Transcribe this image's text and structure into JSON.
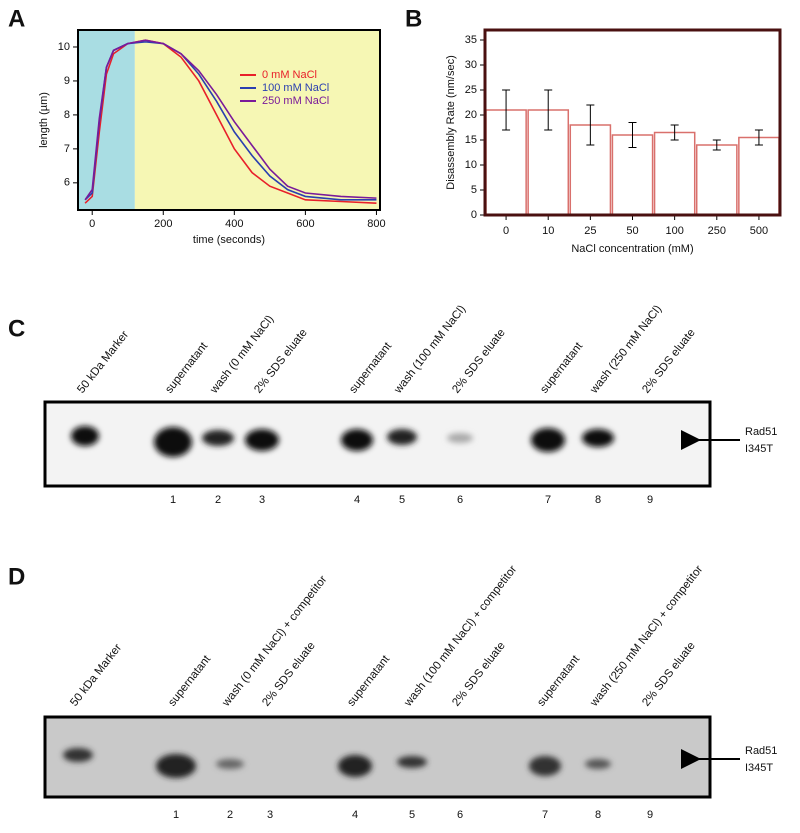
{
  "chart_data": [
    {
      "type": "line",
      "panel": "A",
      "xlabel": "time (seconds)",
      "ylabel": "length (µm)",
      "x": [
        -20,
        0,
        20,
        40,
        60,
        100,
        150,
        200,
        250,
        300,
        350,
        400,
        450,
        500,
        550,
        600,
        700,
        800
      ],
      "series": [
        {
          "name": "0 mM NaCl",
          "color": "#e8202a",
          "values": [
            5.4,
            5.6,
            7.5,
            9.2,
            9.8,
            10.1,
            10.2,
            10.1,
            9.7,
            9.0,
            8.0,
            7.0,
            6.3,
            5.9,
            5.7,
            5.5,
            5.45,
            5.4
          ]
        },
        {
          "name": "100 mM NaCl",
          "color": "#2a3fb0",
          "values": [
            5.5,
            5.7,
            7.8,
            9.4,
            9.9,
            10.1,
            10.15,
            10.1,
            9.8,
            9.2,
            8.4,
            7.5,
            6.8,
            6.2,
            5.8,
            5.6,
            5.5,
            5.5
          ]
        },
        {
          "name": "250 mM NaCl",
          "color": "#7a1a9a",
          "values": [
            5.5,
            5.8,
            7.9,
            9.4,
            9.9,
            10.1,
            10.2,
            10.1,
            9.8,
            9.3,
            8.6,
            7.8,
            7.1,
            6.4,
            5.9,
            5.7,
            5.6,
            5.55
          ]
        }
      ],
      "shaded_spans": [
        {
          "from": -40,
          "to": 120,
          "color": "#a9dde3"
        },
        {
          "from": 120,
          "to": 810,
          "color": "#f6f7b4"
        }
      ],
      "xlim": [
        -40,
        810
      ],
      "xticks": [
        0,
        200,
        400,
        600,
        800
      ],
      "ylim": [
        5.2,
        10.5
      ],
      "yticks": [
        6,
        7,
        8,
        9,
        10
      ],
      "legend": "upper right"
    },
    {
      "type": "bar",
      "panel": "B",
      "xlabel": "NaCl concentration (mM)",
      "ylabel": "Disassembly Rate (nm/sec)",
      "categories": [
        "0",
        "10",
        "25",
        "50",
        "100",
        "250",
        "500"
      ],
      "values": [
        21,
        21,
        18,
        16,
        16.5,
        14,
        15.5
      ],
      "errors": [
        4,
        4,
        4,
        2.5,
        1.5,
        1,
        1.5
      ],
      "color": "#d9706c",
      "frame_color": "#4a1010",
      "ylim": [
        0,
        37
      ],
      "yticks": [
        0,
        5,
        10,
        15,
        20,
        25,
        30,
        35
      ]
    }
  ],
  "figure": {
    "panel_labels": [
      "A",
      "B",
      "C",
      "D"
    ],
    "gels": [
      {
        "lane_labels": [
          "50 kDa Marker",
          "supernatant",
          "wash (0 mM NaCl)",
          "2% SDS eluate",
          "supernatant",
          "wash (100 mM NaCl)",
          "2% SDS eluate",
          "supernatant",
          "wash (250 mM NaCl)",
          "2% SDS eluate"
        ],
        "lane_numbers": [
          "1",
          "2",
          "3",
          "4",
          "5",
          "6",
          "7",
          "8",
          "9"
        ],
        "protein_label": [
          "Rad51",
          "I345T"
        ]
      },
      {
        "lane_labels": [
          "50 kDa Marker",
          "supernatant",
          "wash (0 mM NaCl) + competitor",
          "2% SDS eluate",
          "supernatant",
          "wash (100 mM NaCl) + competitor",
          "2% SDS eluate",
          "supernatant",
          "wash (250 mM NaCl) + competitor",
          "2% SDS eluate"
        ],
        "lane_numbers": [
          "1",
          "2",
          "3",
          "4",
          "5",
          "6",
          "7",
          "8",
          "9"
        ],
        "protein_label": [
          "Rad51",
          "I345T"
        ]
      }
    ]
  }
}
